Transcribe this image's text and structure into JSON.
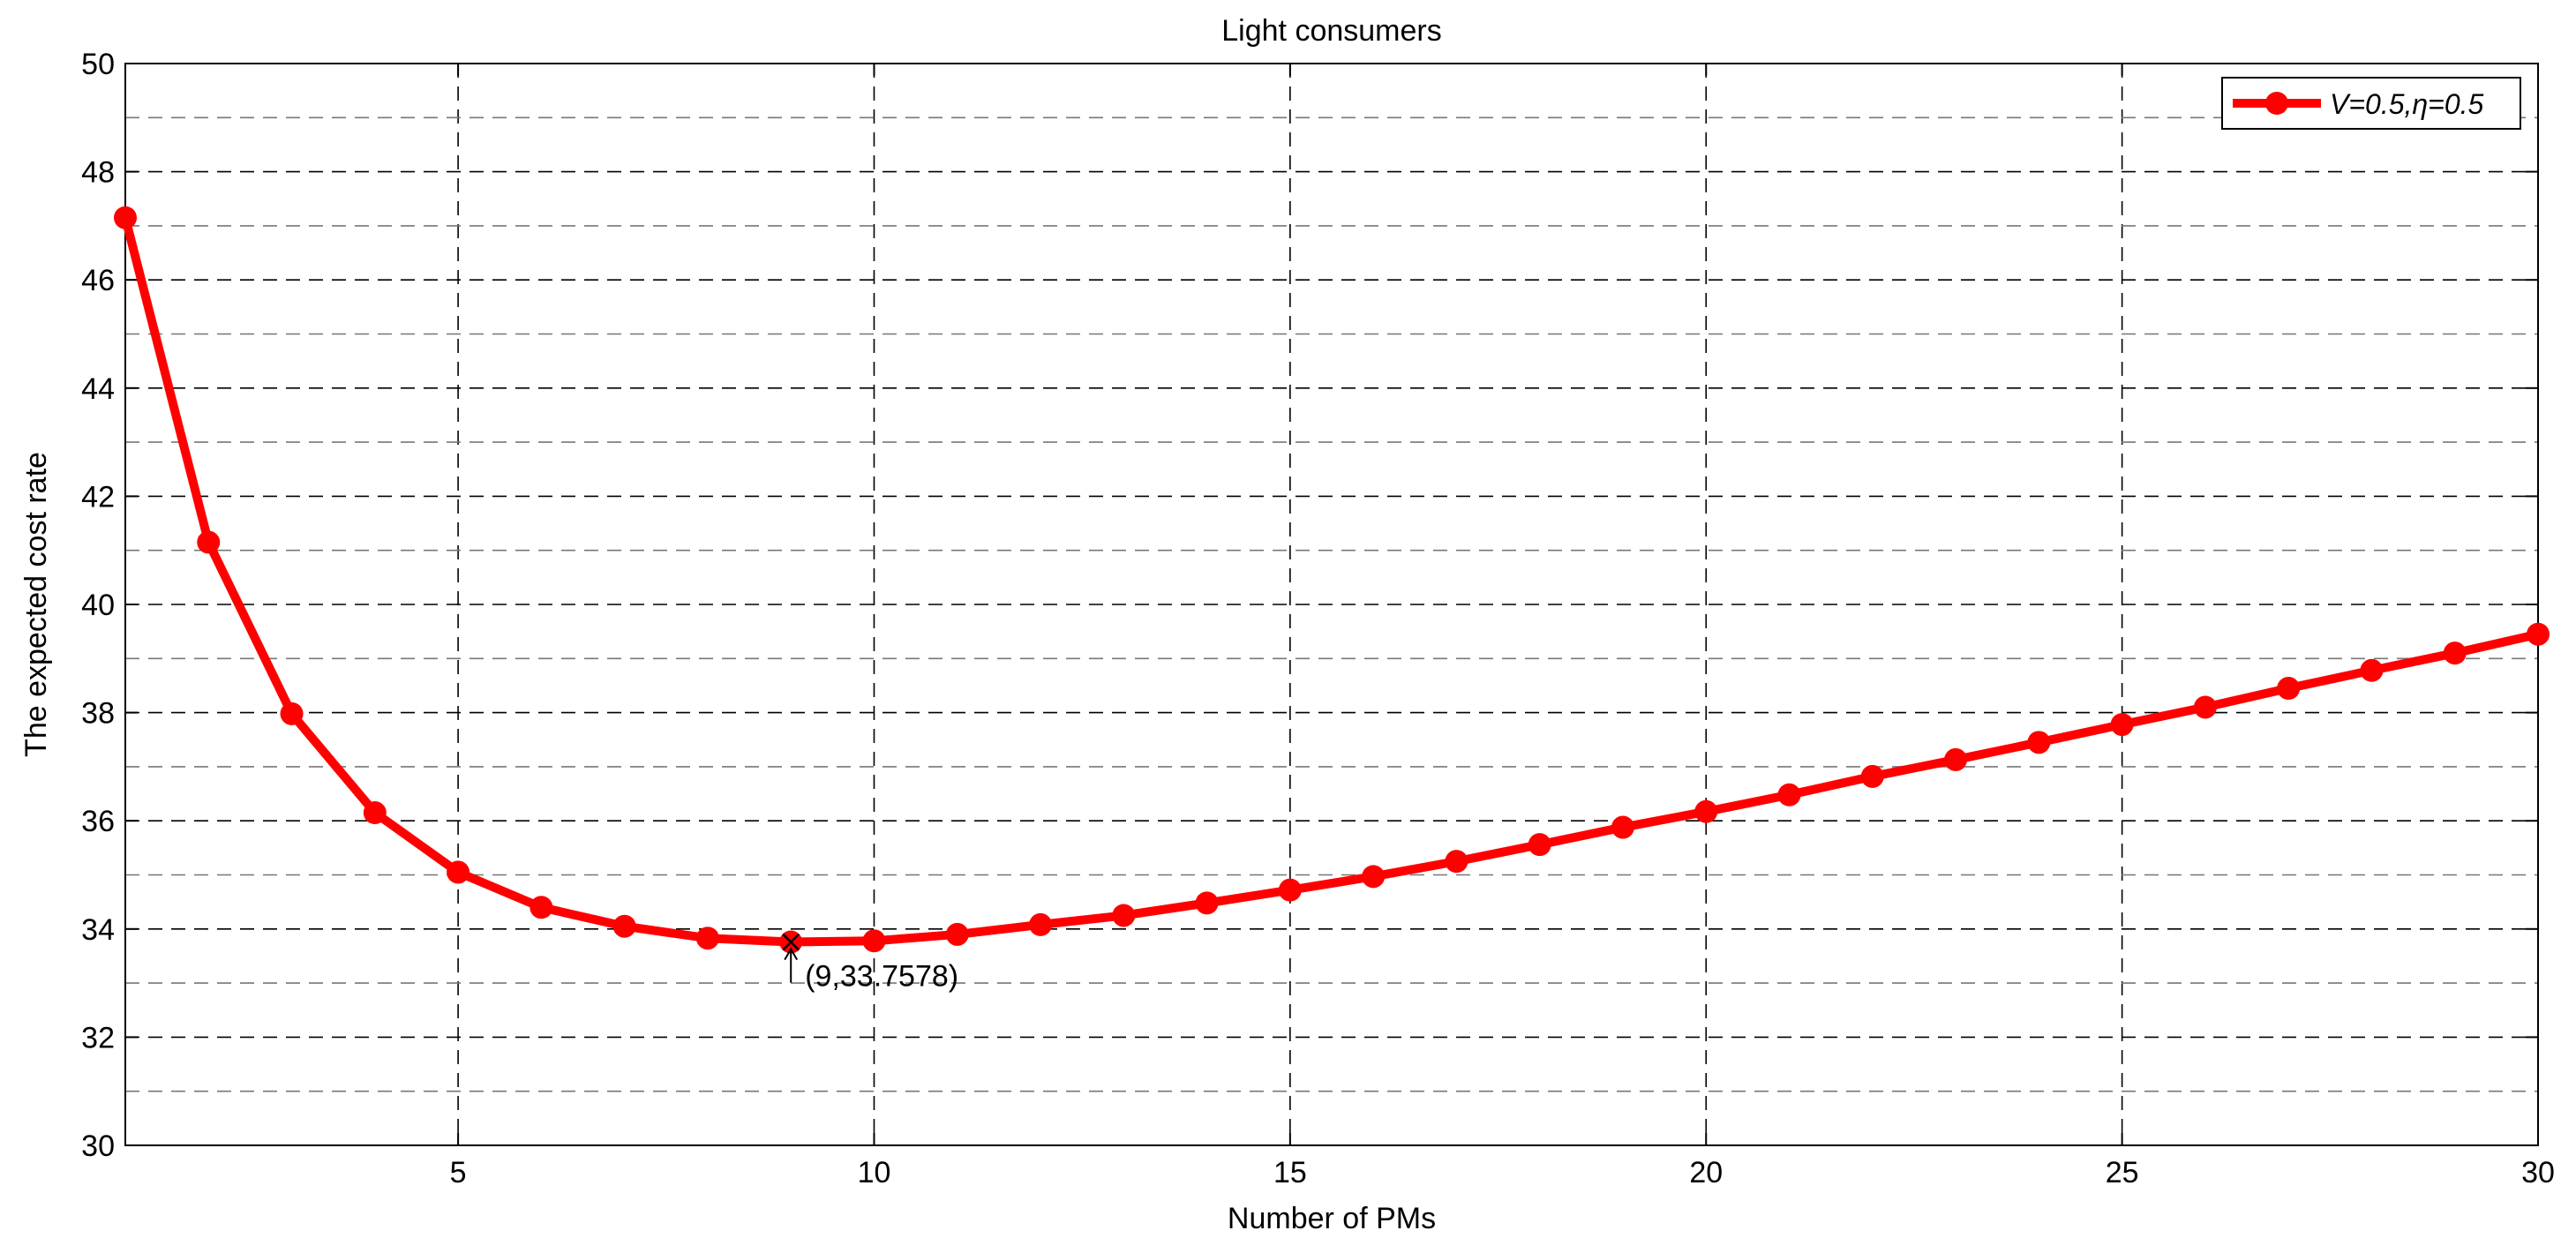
{
  "chart_data": {
    "type": "line",
    "title": "Light consumers",
    "xlabel": "Number of PMs",
    "ylabel": "The expected cost rate",
    "xlim": [
      1,
      30
    ],
    "ylim": [
      30,
      50
    ],
    "x_ticks": [
      "5",
      "10",
      "15",
      "20",
      "25",
      "30"
    ],
    "y_ticks": [
      "30",
      "32",
      "34",
      "36",
      "38",
      "40",
      "42",
      "44",
      "46",
      "48",
      "50"
    ],
    "grid": true,
    "legend_position": "top-right",
    "series": [
      {
        "name": "V=0.5,η=0.5",
        "color": "#ff0000",
        "marker": "circle",
        "x": [
          1,
          2,
          3,
          4,
          5,
          6,
          7,
          8,
          9,
          10,
          11,
          12,
          13,
          14,
          15,
          16,
          17,
          18,
          19,
          20,
          21,
          22,
          23,
          24,
          25,
          26,
          27,
          28,
          29,
          30
        ],
        "y": [
          47.15,
          41.15,
          37.98,
          36.15,
          35.05,
          34.4,
          34.05,
          33.83,
          33.76,
          33.78,
          33.9,
          34.08,
          34.25,
          34.48,
          34.72,
          34.97,
          35.25,
          35.56,
          35.88,
          36.17,
          36.48,
          36.82,
          37.13,
          37.45,
          37.78,
          38.1,
          38.45,
          38.78,
          39.1,
          39.45
        ]
      }
    ],
    "annotations": [
      {
        "text": "(9,33.7578)",
        "x": 9,
        "y": 33.7578
      }
    ]
  }
}
